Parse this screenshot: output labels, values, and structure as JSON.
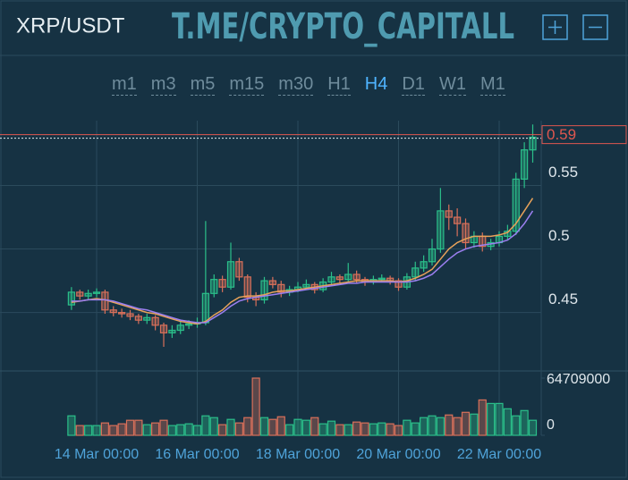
{
  "header": {
    "symbol": "XRP/USDT",
    "watermark": "T.ME/CRYPTO_CAPITALL"
  },
  "timeframes": {
    "items": [
      "m1",
      "m3",
      "m5",
      "m15",
      "m30",
      "H1",
      "H4",
      "D1",
      "W1",
      "M1"
    ],
    "active": "H4"
  },
  "chart_data": {
    "type": "candlestick",
    "categories": [
      null,
      null,
      null,
      "14 Mar 00:00",
      null,
      null,
      null,
      null,
      null,
      null,
      null,
      null,
      null,
      null,
      null,
      "16 Mar 00:00",
      null,
      null,
      null,
      null,
      null,
      null,
      null,
      null,
      null,
      null,
      null,
      "18 Mar 00:00",
      null,
      null,
      null,
      null,
      null,
      null,
      null,
      null,
      null,
      null,
      null,
      "20 Mar 00:00",
      null,
      null,
      null,
      null,
      null,
      null,
      null,
      null,
      null,
      null,
      null,
      "22 Mar 00:00",
      null,
      null,
      null,
      null
    ],
    "open": [
      0.456,
      0.466,
      0.463,
      0.465,
      0.466,
      0.452,
      0.45,
      0.449,
      0.447,
      0.444,
      0.446,
      0.44,
      0.434,
      0.436,
      0.44,
      0.441,
      0.442,
      0.465,
      0.476,
      0.47,
      0.49,
      0.478,
      0.462,
      0.46,
      0.475,
      0.472,
      0.466,
      0.468,
      0.47,
      0.472,
      0.468,
      0.474,
      0.478,
      0.476,
      0.48,
      0.476,
      0.474,
      0.476,
      0.477,
      0.475,
      0.47,
      0.478,
      0.485,
      0.49,
      0.5,
      0.53,
      0.525,
      0.52,
      0.505,
      0.51,
      0.502,
      0.505,
      0.51,
      0.514,
      0.555,
      0.578
    ],
    "high": [
      0.47,
      0.468,
      0.468,
      0.469,
      0.468,
      0.455,
      0.453,
      0.452,
      0.449,
      0.449,
      0.448,
      0.442,
      0.44,
      0.443,
      0.444,
      0.446,
      0.522,
      0.48,
      0.479,
      0.505,
      0.493,
      0.48,
      0.466,
      0.478,
      0.478,
      0.475,
      0.471,
      0.474,
      0.476,
      0.474,
      0.477,
      0.482,
      0.48,
      0.489,
      0.483,
      0.478,
      0.479,
      0.48,
      0.479,
      0.477,
      0.481,
      0.49,
      0.495,
      0.508,
      0.548,
      0.535,
      0.532,
      0.524,
      0.514,
      0.513,
      0.508,
      0.514,
      0.519,
      0.56,
      0.584,
      0.598
    ],
    "low": [
      0.452,
      0.46,
      0.46,
      0.462,
      0.449,
      0.447,
      0.446,
      0.444,
      0.441,
      0.441,
      0.436,
      0.423,
      0.43,
      0.433,
      0.437,
      0.438,
      0.44,
      0.462,
      0.466,
      0.468,
      0.475,
      0.458,
      0.455,
      0.457,
      0.469,
      0.462,
      0.463,
      0.466,
      0.468,
      0.465,
      0.466,
      0.471,
      0.473,
      0.474,
      0.473,
      0.471,
      0.472,
      0.474,
      0.472,
      0.467,
      0.468,
      0.475,
      0.482,
      0.487,
      0.497,
      0.515,
      0.51,
      0.5,
      0.501,
      0.498,
      0.499,
      0.502,
      0.507,
      0.511,
      0.548,
      0.568
    ],
    "close": [
      0.466,
      0.463,
      0.465,
      0.466,
      0.452,
      0.45,
      0.449,
      0.447,
      0.444,
      0.446,
      0.44,
      0.434,
      0.436,
      0.44,
      0.441,
      0.442,
      0.465,
      0.476,
      0.47,
      0.49,
      0.478,
      0.462,
      0.46,
      0.475,
      0.472,
      0.466,
      0.468,
      0.47,
      0.472,
      0.468,
      0.474,
      0.478,
      0.476,
      0.48,
      0.476,
      0.474,
      0.476,
      0.477,
      0.475,
      0.47,
      0.478,
      0.485,
      0.49,
      0.5,
      0.53,
      0.525,
      0.52,
      0.505,
      0.51,
      0.502,
      0.505,
      0.51,
      0.514,
      0.555,
      0.578,
      0.588
    ],
    "volume": [
      22000000,
      11000000,
      11000000,
      11000000,
      14000000,
      11000000,
      13000000,
      17000000,
      17000000,
      12000000,
      14000000,
      17000000,
      11000000,
      12000000,
      13000000,
      11000000,
      22000000,
      20000000,
      12000000,
      18000000,
      14000000,
      20000000,
      64709000,
      20000000,
      18000000,
      21000000,
      12000000,
      18000000,
      17000000,
      20000000,
      13000000,
      16000000,
      12000000,
      12000000,
      15000000,
      14000000,
      13000000,
      14000000,
      13000000,
      11000000,
      17000000,
      14000000,
      20000000,
      22000000,
      20000000,
      23000000,
      20000000,
      26000000,
      24000000,
      40000000,
      36000000,
      36000000,
      30000000,
      22000000,
      28000000,
      17000000
    ],
    "lines": [
      {
        "color": "#e8a25a",
        "values": [
          0.458,
          0.459,
          0.46,
          0.461,
          0.46,
          0.458,
          0.456,
          0.454,
          0.452,
          0.45,
          0.449,
          0.447,
          0.445,
          0.443,
          0.442,
          0.441,
          0.443,
          0.448,
          0.452,
          0.458,
          0.462,
          0.463,
          0.463,
          0.464,
          0.466,
          0.467,
          0.467,
          0.468,
          0.469,
          0.47,
          0.471,
          0.472,
          0.473,
          0.474,
          0.475,
          0.475,
          0.475,
          0.475,
          0.475,
          0.474,
          0.475,
          0.477,
          0.48,
          0.484,
          0.492,
          0.5,
          0.505,
          0.508,
          0.51,
          0.51,
          0.51,
          0.511,
          0.513,
          0.52,
          0.53,
          0.54
        ]
      },
      {
        "color": "#9b7ff0",
        "values": [
          0.459,
          0.459,
          0.46,
          0.46,
          0.46,
          0.459,
          0.457,
          0.455,
          0.453,
          0.452,
          0.45,
          0.448,
          0.446,
          0.444,
          0.443,
          0.442,
          0.442,
          0.446,
          0.45,
          0.455,
          0.459,
          0.461,
          0.462,
          0.463,
          0.464,
          0.465,
          0.466,
          0.467,
          0.468,
          0.469,
          0.47,
          0.471,
          0.472,
          0.473,
          0.473,
          0.474,
          0.474,
          0.474,
          0.474,
          0.474,
          0.474,
          0.475,
          0.477,
          0.48,
          0.486,
          0.492,
          0.497,
          0.5,
          0.502,
          0.503,
          0.504,
          0.505,
          0.507,
          0.512,
          0.52,
          0.53
        ]
      }
    ],
    "up_color": "#2bbf8a",
    "down_color": "#d9705a",
    "ylim": [
      0.404,
      0.601
    ],
    "yticks": [
      0.45,
      0.5,
      0.55
    ],
    "last_price": 0.59,
    "last_price_color": "#e0574f",
    "volume_ylim": [
      0,
      64709000
    ],
    "volume_yticks": [
      0,
      64709000
    ],
    "grid": true
  }
}
